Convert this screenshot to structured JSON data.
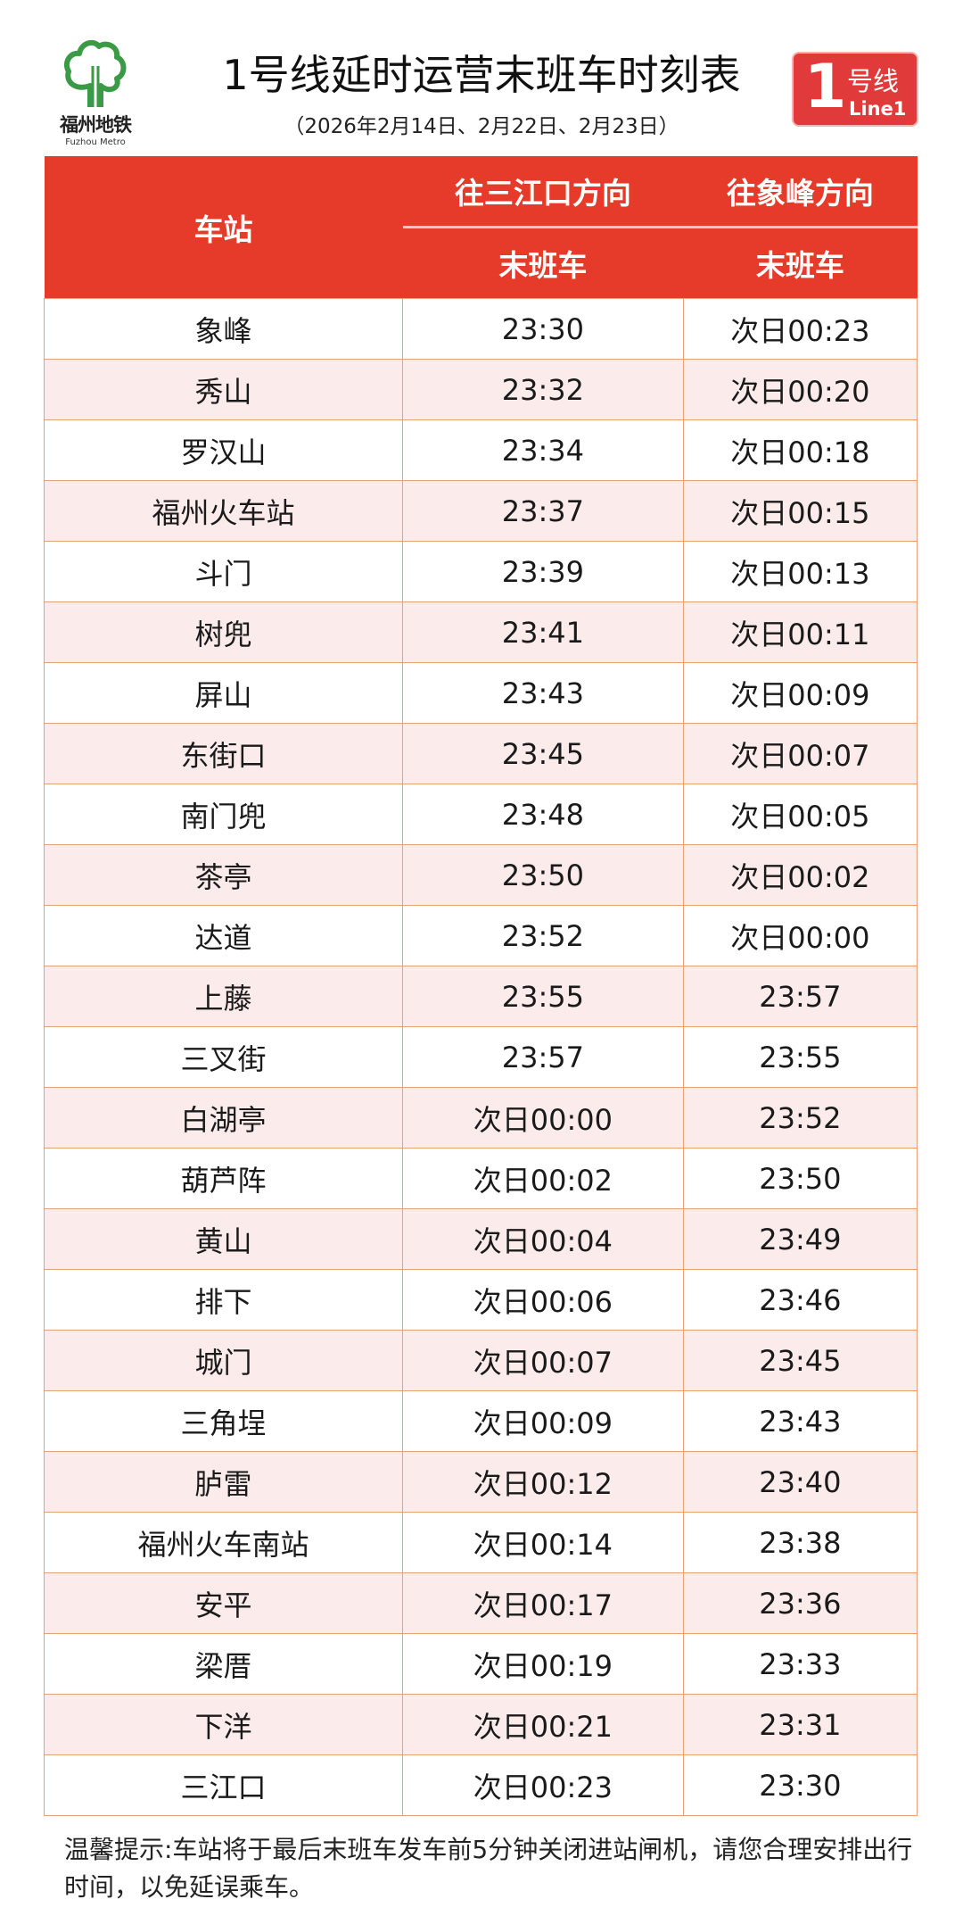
{
  "logo": {
    "name_cn": "福州地铁",
    "name_en": "Fuzhou Metro",
    "color": "#3a9a45"
  },
  "title": "1号线延时运营末班车时刻表",
  "subtitle": "（2026年2月14日、2月22日、2月23日）",
  "badge": {
    "number": "1",
    "label_cn": "号线",
    "label_en": "Line1",
    "color": "#e03a3a"
  },
  "table": {
    "header": {
      "station": "车站",
      "dir1": "往三江口方向",
      "dir2": "往象峰方向",
      "last1": "末班车",
      "last2": "末班车"
    },
    "header_color": "#e63a2a",
    "rows": [
      [
        "象峰",
        "23:30",
        "次日00:23"
      ],
      [
        "秀山",
        "23:32",
        "次日00:20"
      ],
      [
        "罗汉山",
        "23:34",
        "次日00:18"
      ],
      [
        "福州火车站",
        "23:37",
        "次日00:15"
      ],
      [
        "斗门",
        "23:39",
        "次日00:13"
      ],
      [
        "树兜",
        "23:41",
        "次日00:11"
      ],
      [
        "屏山",
        "23:43",
        "次日00:09"
      ],
      [
        "东街口",
        "23:45",
        "次日00:07"
      ],
      [
        "南门兜",
        "23:48",
        "次日00:05"
      ],
      [
        "茶亭",
        "23:50",
        "次日00:02"
      ],
      [
        "达道",
        "23:52",
        "次日00:00"
      ],
      [
        "上藤",
        "23:55",
        "23:57"
      ],
      [
        "三叉街",
        "23:57",
        "23:55"
      ],
      [
        "白湖亭",
        "次日00:00",
        "23:52"
      ],
      [
        "葫芦阵",
        "次日00:02",
        "23:50"
      ],
      [
        "黄山",
        "次日00:04",
        "23:49"
      ],
      [
        "排下",
        "次日00:06",
        "23:46"
      ],
      [
        "城门",
        "次日00:07",
        "23:45"
      ],
      [
        "三角埕",
        "次日00:09",
        "23:43"
      ],
      [
        "胪雷",
        "次日00:12",
        "23:40"
      ],
      [
        "福州火车南站",
        "次日00:14",
        "23:38"
      ],
      [
        "安平",
        "次日00:17",
        "23:36"
      ],
      [
        "梁厝",
        "次日00:19",
        "23:33"
      ],
      [
        "下洋",
        "次日00:21",
        "23:31"
      ],
      [
        "三江口",
        "次日00:23",
        "23:30"
      ]
    ]
  },
  "note": "温馨提示:车站将于最后末班车发车前5分钟关闭进站闸机，请您合理安排出行时间，以免延误乘车。"
}
